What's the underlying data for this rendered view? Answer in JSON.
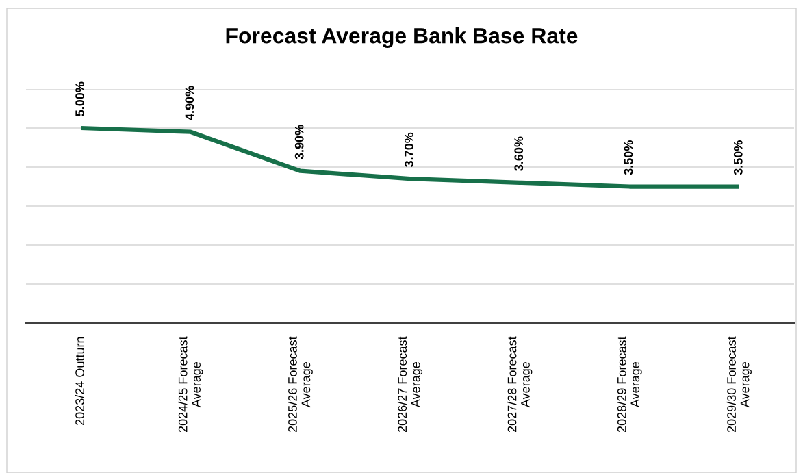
{
  "chart_data": {
    "type": "line",
    "title": "Forecast Average Bank Base Rate",
    "categories": [
      "2023/24 Outturn",
      "2024/25 Forecast\nAverage",
      "2025/26 Forecast\nAverage",
      "2026/27 Forecast\nAverage",
      "2027/28 Forecast\nAverage",
      "2028/29 Forecast\nAverage",
      "2029/30 Forecast\nAverage"
    ],
    "series": [
      {
        "color": "#17704a",
        "values": [
          5.0,
          4.9,
          3.9,
          3.7,
          3.6,
          3.5,
          3.5
        ],
        "value_labels": [
          "5.00%",
          "4.90%",
          "3.90%",
          "3.70%",
          "3.60%",
          "3.50%",
          "3.50%"
        ]
      }
    ],
    "ylim": [
      0,
      6
    ],
    "yticks": [
      {
        "value": 0,
        "label": null
      },
      {
        "value": 1,
        "label": null
      },
      {
        "value": 2,
        "label": null
      },
      {
        "value": 3,
        "label": null
      },
      {
        "value": 4,
        "label": null
      },
      {
        "value": 5,
        "label": null
      },
      {
        "value": 6,
        "label": null
      }
    ],
    "tick_labels": "x",
    "grid": "y",
    "marker": "none",
    "line_style": "solid"
  }
}
